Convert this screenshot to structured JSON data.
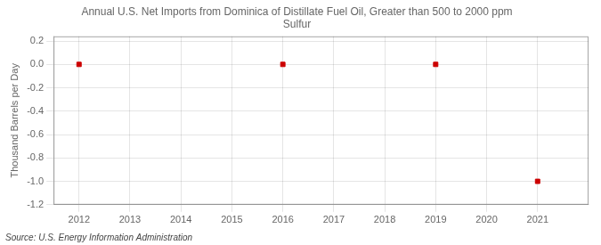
{
  "chart_data": {
    "type": "scatter",
    "title": "Annual U.S. Net Imports from Dominica of Distillate Fuel Oil, Greater than 500 to 2000 ppm\nSulfur",
    "ylabel": "Thousand Barrels per Day",
    "source": "Source: U.S. Energy Information Administration",
    "x": [
      2012,
      2013,
      2014,
      2015,
      2016,
      2017,
      2018,
      2019,
      2020,
      2021
    ],
    "values": [
      0.0,
      null,
      null,
      null,
      0.0,
      null,
      null,
      0.0,
      null,
      -1.0
    ],
    "color": "#cc0000",
    "marker": "square",
    "xlim": [
      2011.5,
      2022.0
    ],
    "xticks": [
      2012,
      2013,
      2014,
      2015,
      2016,
      2017,
      2018,
      2019,
      2020,
      2021
    ],
    "ylim": [
      -1.2,
      0.24
    ],
    "yticks": [
      -1.2,
      {
        "value": -1.0,
        "label": "-1.0"
      },
      -0.8,
      -0.6,
      -0.4,
      -0.2,
      {
        "value": 0.0,
        "label": "0.0"
      },
      0.2
    ],
    "grid": true
  }
}
